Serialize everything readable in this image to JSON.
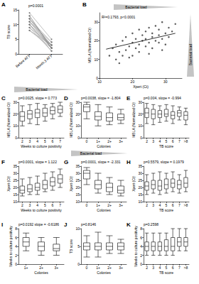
{
  "chart_data": [
    {
      "type": "line",
      "title": "A",
      "ylabel": "TB score",
      "categories": [
        "Before ATT",
        "Month 3 ATT"
      ],
      "color": "#808080",
      "series": [
        {
          "values": [
            8,
            2
          ]
        },
        {
          "values": [
            9,
            3
          ]
        },
        {
          "values": [
            10,
            2
          ]
        },
        {
          "values": [
            11,
            4
          ]
        },
        {
          "values": [
            12,
            3
          ]
        },
        {
          "values": [
            13,
            2
          ]
        },
        {
          "values": [
            14,
            5
          ]
        },
        {
          "values": [
            9,
            1
          ]
        },
        {
          "values": [
            10,
            3
          ]
        },
        {
          "values": [
            11,
            2
          ]
        },
        {
          "values": [
            12,
            4
          ]
        },
        {
          "values": [
            8,
            3
          ]
        },
        {
          "values": [
            13,
            2
          ]
        },
        {
          "values": [
            10,
            1
          ]
        },
        {
          "values": [
            11,
            3
          ]
        },
        {
          "values": [
            12,
            2
          ]
        }
      ],
      "ylim": [
        0,
        15
      ],
      "yticks": [
        0,
        5,
        10,
        15
      ],
      "annotations": [
        "p=0.0001"
      ]
    },
    {
      "type": "scatter",
      "title": "B",
      "xlabel": "Xpert (Ct)",
      "ylabel": "MBLA (Normalized Ct)",
      "series": [
        {
          "type": "scatter",
          "color": "#333333",
          "x": [
            13,
            14,
            15,
            15,
            16,
            17,
            17,
            18,
            18,
            19,
            19,
            20,
            20,
            21,
            21,
            22,
            22,
            22,
            23,
            23,
            24,
            24,
            24,
            25,
            25,
            26,
            26,
            26,
            27,
            27,
            28,
            28,
            28,
            29,
            29,
            30,
            30,
            31,
            31,
            32,
            33,
            16,
            20,
            25,
            29
          ],
          "values": [
            12,
            16,
            10,
            18,
            14,
            20,
            12,
            15,
            22,
            17,
            11,
            19,
            24,
            16,
            21,
            18,
            14,
            26,
            20,
            23,
            17,
            25,
            21,
            19,
            27,
            22,
            16,
            24,
            20,
            28,
            23,
            19,
            26,
            21,
            30,
            24,
            18,
            27,
            22,
            25,
            29,
            8,
            12,
            13,
            15
          ]
        },
        {
          "type": "line",
          "color": "#000000",
          "x": [
            12,
            33
          ],
          "values": [
            15.5,
            24
          ]
        }
      ],
      "xlim": [
        10,
        35
      ],
      "xticks": [
        10,
        20,
        30
      ],
      "ylim": [
        0,
        35
      ],
      "yticks": [
        0,
        10,
        20,
        30
      ],
      "annotations": [
        "R²=0.1793, p<0.0001",
        "Bacterial load",
        "Bacterial load"
      ]
    },
    {
      "type": "boxplot",
      "title": "C",
      "xlabel": "Weeks to culture positivity",
      "ylabel": "MBLA (Normalized Ct)",
      "color": "#000000",
      "categories": [
        "2",
        "3",
        "4",
        "5",
        "6",
        "7"
      ],
      "values": [
        [
          10,
          14,
          18,
          22,
          27
        ],
        [
          12,
          16,
          20,
          23,
          28
        ],
        [
          11,
          17,
          21,
          24,
          29
        ],
        [
          14,
          18,
          21,
          25,
          28
        ],
        [
          16,
          20,
          23,
          26,
          29
        ],
        [
          18,
          21,
          24,
          27,
          30
        ]
      ],
      "ylim": [
        0,
        30
      ],
      "yticks": [
        0,
        10,
        20,
        30
      ],
      "annotations": [
        "p=0.0025, slope = 0.773",
        "Bacterial load"
      ]
    },
    {
      "type": "boxplot",
      "title": "D",
      "xlabel": "Colonies",
      "ylabel": "MBLA (Normalized Ct)",
      "color": "#000000",
      "categories": [
        "0",
        "1+",
        "2+",
        "3+"
      ],
      "values": [
        [
          16,
          22,
          26,
          28,
          30
        ],
        [
          10,
          15,
          18,
          22,
          28
        ],
        [
          11,
          14,
          17,
          21,
          26
        ],
        [
          12,
          15,
          17,
          20,
          24
        ]
      ],
      "ylim": [
        0,
        30
      ],
      "yticks": [
        0,
        10,
        20,
        30
      ],
      "annotations": [
        "p=0.0038, slope = -1.804"
      ]
    },
    {
      "type": "boxplot",
      "title": "E",
      "xlabel": "TB score",
      "ylabel": "MBLA (Normalized Ct)",
      "color": "#000000",
      "categories": [
        "2",
        "3",
        "4",
        "5",
        "6",
        "7",
        ">8"
      ],
      "values": [
        [
          12,
          17,
          21,
          25,
          29
        ],
        [
          11,
          16,
          20,
          24,
          28
        ],
        [
          13,
          17,
          20,
          23,
          27
        ],
        [
          14,
          18,
          20,
          24,
          28
        ],
        [
          12,
          16,
          19,
          22,
          27
        ],
        [
          15,
          18,
          21,
          23,
          26
        ],
        [
          11,
          15,
          19,
          22,
          25
        ]
      ],
      "ylim": [
        0,
        30
      ],
      "yticks": [
        0,
        10,
        20,
        30
      ],
      "annotations": [
        "p=0.004, slope = -0.994"
      ]
    },
    {
      "type": "boxplot",
      "title": "F",
      "xlabel": "Weeks to culture positivity",
      "ylabel": "Xpert (Ct)",
      "color": "#000000",
      "categories": [
        "2",
        "3",
        "4",
        "5",
        "6",
        "7"
      ],
      "values": [
        [
          14,
          16,
          18,
          21,
          26
        ],
        [
          15,
          17,
          19,
          22,
          27
        ],
        [
          15,
          18,
          20,
          23,
          28
        ],
        [
          17,
          19,
          22,
          25,
          30
        ],
        [
          18,
          21,
          24,
          27,
          31
        ],
        [
          20,
          23,
          26,
          29,
          33
        ]
      ],
      "ylim": [
        10,
        35
      ],
      "yticks": [
        10,
        15,
        20,
        25,
        30,
        35
      ],
      "annotations": [
        "p=0.0001, slope = 1.122",
        "Bacterial load"
      ]
    },
    {
      "type": "boxplot",
      "title": "G",
      "xlabel": "Colonies",
      "ylabel": "Xpert (Ct)",
      "color": "#000000",
      "categories": [
        "0",
        "1+",
        "2+",
        "3+"
      ],
      "values": [
        [
          22,
          26,
          30,
          32,
          34
        ],
        [
          16,
          19,
          22,
          25,
          30
        ],
        [
          15,
          17,
          20,
          23,
          27
        ],
        [
          14,
          16,
          18,
          21,
          25
        ]
      ],
      "ylim": [
        10,
        35
      ],
      "yticks": [
        10,
        15,
        20,
        25,
        30,
        35
      ],
      "annotations": [
        "p=0.0001, slope = -2.331"
      ]
    },
    {
      "type": "boxplot",
      "title": "H",
      "xlabel": "TB score",
      "ylabel": "Xpert (Ct)",
      "color": "#000000",
      "categories": [
        "2",
        "3",
        "4",
        "5",
        "6",
        "7",
        ">8"
      ],
      "values": [
        [
          15,
          18,
          21,
          24,
          29
        ],
        [
          16,
          19,
          22,
          25,
          30
        ],
        [
          15,
          18,
          21,
          25,
          31
        ],
        [
          16,
          19,
          22,
          26,
          30
        ],
        [
          17,
          20,
          23,
          26,
          31
        ],
        [
          16,
          19,
          22,
          25,
          29
        ],
        [
          17,
          20,
          23,
          27,
          32
        ]
      ],
      "ylim": [
        10,
        35
      ],
      "yticks": [
        10,
        15,
        20,
        25,
        30,
        35
      ],
      "annotations": [
        "p=0.5579, slope = 0.1979"
      ]
    },
    {
      "type": "boxplot",
      "title": "I",
      "xlabel": "Colonies",
      "ylabel": "Weeks to culture positivity",
      "color": "#000000",
      "categories": [
        "1+",
        "2+",
        "3+"
      ],
      "values": [
        [
          3,
          4,
          5,
          6,
          7
        ],
        [
          2,
          3,
          4,
          5,
          6
        ],
        [
          2,
          3,
          3.5,
          4.5,
          6
        ]
      ],
      "ylim": [
        0,
        8
      ],
      "yticks": [
        0,
        2,
        4,
        6,
        8
      ],
      "annotations": [
        "p=0.0192 slope = -0.6186"
      ]
    },
    {
      "type": "boxplot",
      "title": "J",
      "xlabel": "Colonies",
      "ylabel": "TB score",
      "color": "#000000",
      "categories": [
        "0",
        "1+",
        "2+",
        "3+"
      ],
      "values": [
        [
          2,
          4,
          5,
          6,
          8
        ],
        [
          2,
          4,
          5,
          6,
          9
        ],
        [
          3,
          4,
          5,
          6,
          8
        ],
        [
          3,
          4,
          5,
          6,
          7
        ]
      ],
      "ylim": [
        0,
        10
      ],
      "yticks": [
        0,
        5,
        10
      ],
      "annotations": [
        "p=0.8146"
      ]
    },
    {
      "type": "boxplot",
      "title": "K",
      "xlabel": "TB score",
      "ylabel": "Weeks to culture positivity",
      "color": "#000000",
      "categories": [
        "2",
        "3",
        "4",
        "5",
        "6",
        "7",
        ">8"
      ],
      "values": [
        [
          2,
          3,
          4,
          5,
          7
        ],
        [
          2,
          3,
          4,
          5,
          7
        ],
        [
          2,
          3,
          4,
          5,
          7
        ],
        [
          2,
          3,
          4,
          5.5,
          7
        ],
        [
          2,
          3,
          4,
          6,
          8
        ],
        [
          3,
          4,
          5,
          6,
          8
        ],
        [
          3,
          4,
          5,
          6,
          8
        ]
      ],
      "ylim": [
        0,
        8
      ],
      "yticks": [
        0,
        2,
        4,
        6,
        8
      ],
      "annotations": [
        "p=0.2598"
      ]
    }
  ]
}
